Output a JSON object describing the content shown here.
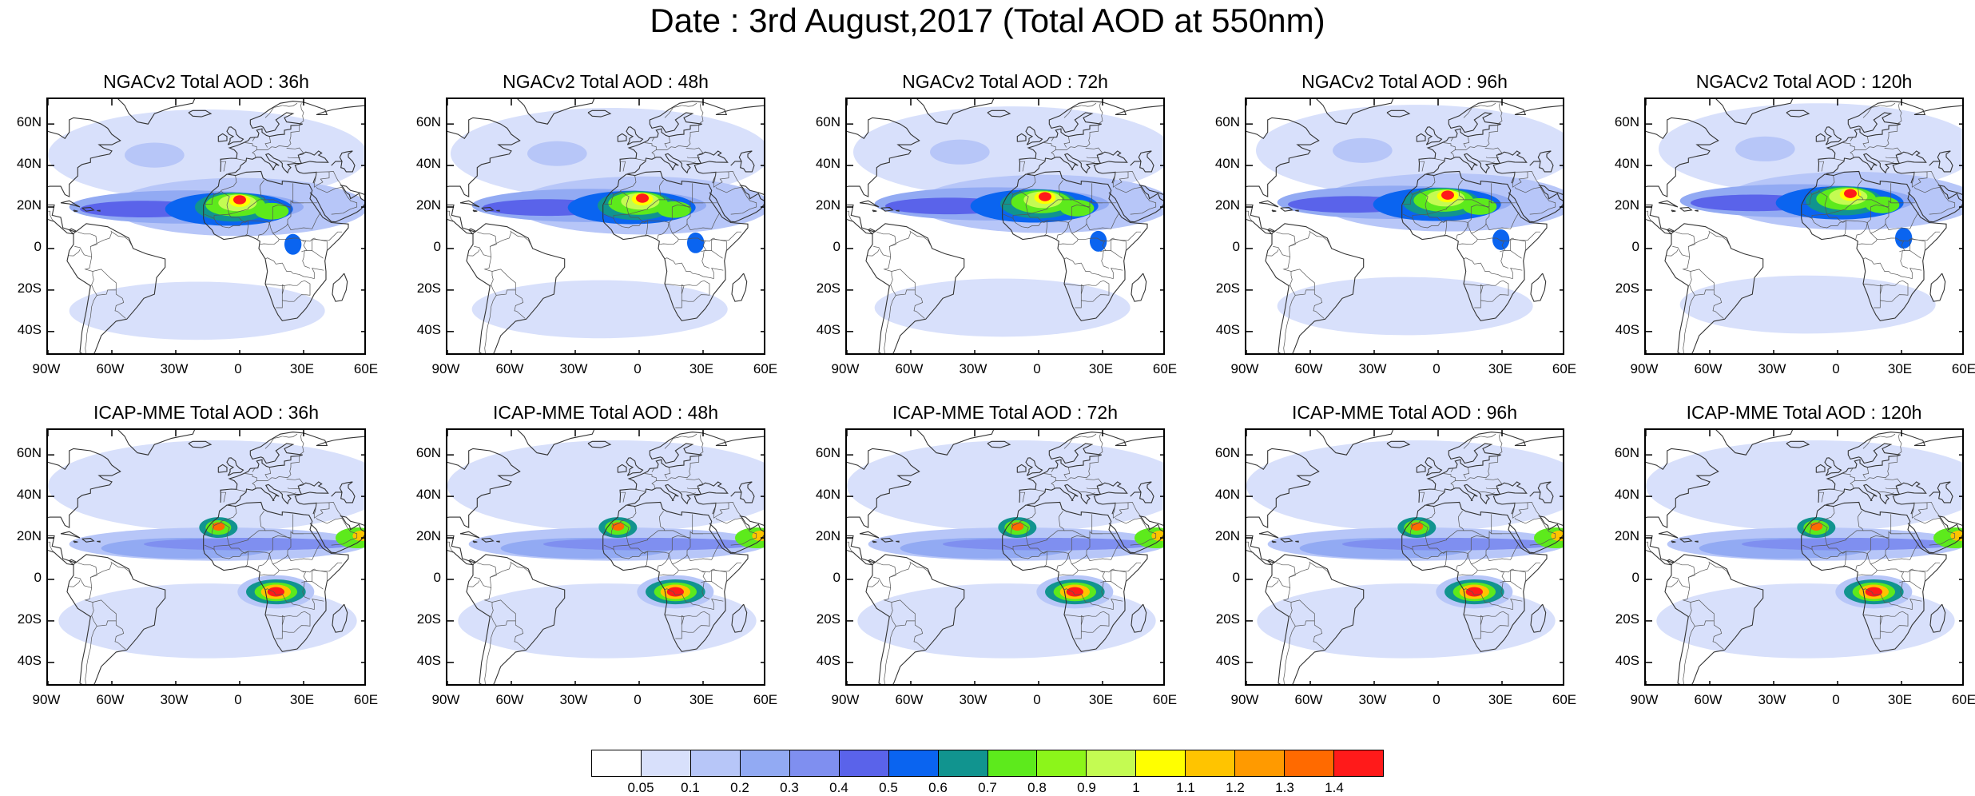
{
  "title": "Date : 3rd August,2017 (Total AOD at 550nm)",
  "rows": [
    {
      "model": "NGACv2",
      "panels": [
        {
          "title": "NGACv2 Total AOD : 36h",
          "lead_hours": 36
        },
        {
          "title": "NGACv2 Total AOD : 48h",
          "lead_hours": 48
        },
        {
          "title": "NGACv2 Total AOD : 72h",
          "lead_hours": 72
        },
        {
          "title": "NGACv2 Total AOD : 96h",
          "lead_hours": 96
        },
        {
          "title": "NGACv2 Total AOD : 120h",
          "lead_hours": 120
        }
      ]
    },
    {
      "model": "ICAP-MME",
      "panels": [
        {
          "title": "ICAP-MME Total AOD : 36h",
          "lead_hours": 36
        },
        {
          "title": "ICAP-MME Total AOD : 48h",
          "lead_hours": 48
        },
        {
          "title": "ICAP-MME Total AOD : 72h",
          "lead_hours": 72
        },
        {
          "title": "ICAP-MME Total AOD : 96h",
          "lead_hours": 96
        },
        {
          "title": "ICAP-MME Total AOD : 120h",
          "lead_hours": 120
        }
      ]
    }
  ],
  "axes": {
    "lon_range": [
      -90,
      60
    ],
    "lat_range": [
      -52,
      72
    ],
    "lon_ticks": [
      {
        "value": -90,
        "label": "90W"
      },
      {
        "value": -60,
        "label": "60W"
      },
      {
        "value": -30,
        "label": "30W"
      },
      {
        "value": 0,
        "label": "0"
      },
      {
        "value": 30,
        "label": "30E"
      },
      {
        "value": 60,
        "label": "60E"
      }
    ],
    "lat_ticks": [
      {
        "value": 60,
        "label": "60N"
      },
      {
        "value": 40,
        "label": "40N"
      },
      {
        "value": 20,
        "label": "20N"
      },
      {
        "value": 0,
        "label": "0"
      },
      {
        "value": -20,
        "label": "20S"
      },
      {
        "value": -40,
        "label": "40S"
      }
    ]
  },
  "colorbar": {
    "levels": [
      "0.05",
      "0.1",
      "0.2",
      "0.3",
      "0.4",
      "0.5",
      "0.6",
      "0.7",
      "0.8",
      "0.9",
      "1",
      "1.1",
      "1.2",
      "1.3",
      "1.4"
    ],
    "colors": [
      "#ffffff",
      "#d8e0fb",
      "#b7c6f8",
      "#92aaf3",
      "#7f8ff0",
      "#5a63ea",
      "#0a64f0",
      "#11948f",
      "#5dea1c",
      "#8cf51a",
      "#c4fb52",
      "#ffff00",
      "#ffc400",
      "#ff9a00",
      "#ff6a00",
      "#ff1a1a"
    ]
  }
}
